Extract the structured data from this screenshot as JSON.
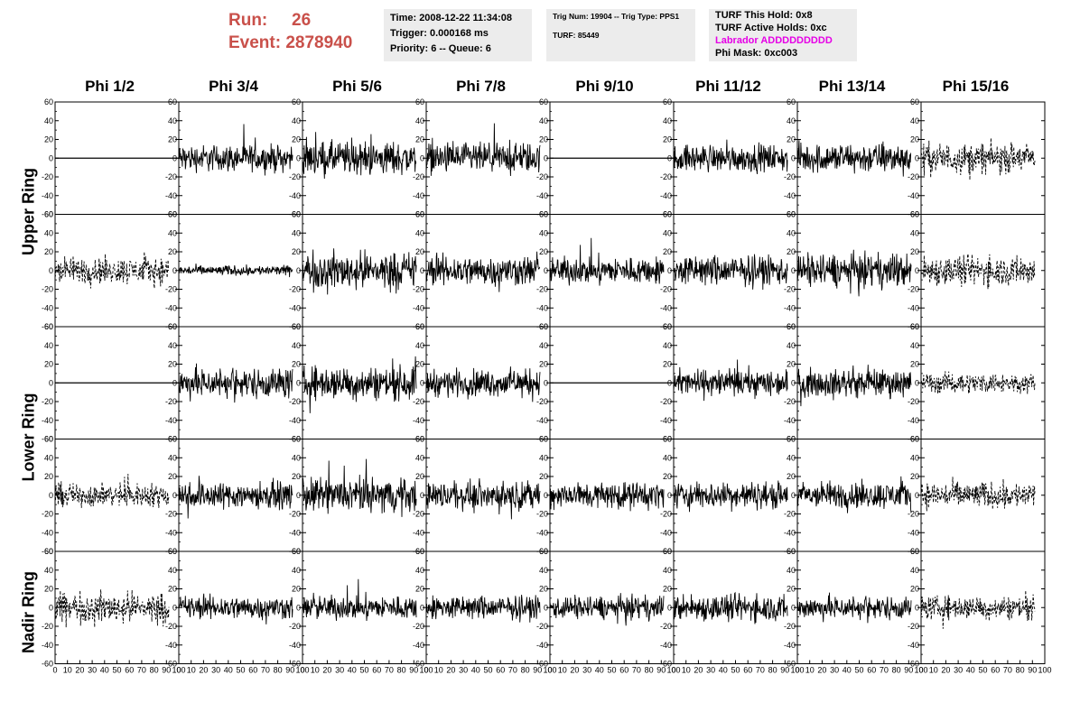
{
  "run": {
    "run_label": "Run:",
    "run_value": "26",
    "event_label": "Event:",
    "event_value": "2878940"
  },
  "info_time": {
    "time": "Time: 2008-12-22 11:34:08",
    "trigger": "Trigger: 0.000168 ms",
    "priority": "Priority: 6 -- Queue: 6"
  },
  "info_trig": {
    "trig": "Trig Num: 19904 -- Trig Type: PPS1",
    "turf": "TURF: 85449"
  },
  "info_turf": {
    "hold": "TURF This Hold: 0x8",
    "active": "TURF Active Holds: 0xc",
    "labrador": "Labrador ADDDDDDDDD",
    "phimask": "Phi Mask: 0xc003",
    "labrador_color": "#e600e6"
  },
  "columns": [
    "Phi 1/2",
    "Phi 3/4",
    "Phi 5/6",
    "Phi 7/8",
    "Phi 9/10",
    "Phi 11/12",
    "Phi 13/14",
    "Phi 15/16"
  ],
  "row_labels": [
    "Upper Ring",
    "Lower Ring",
    "Nadir Ring"
  ],
  "chart_data": {
    "type": "line",
    "xlim": [
      0,
      100
    ],
    "ylim": [
      -60,
      60
    ],
    "x_ticks": [
      0,
      10,
      20,
      30,
      40,
      50,
      60,
      70,
      80,
      90,
      100
    ],
    "y_ticks": [
      -60,
      -40,
      -20,
      0,
      20,
      40,
      60
    ],
    "grid": false,
    "panel_rows": 5,
    "panel_cols": 8,
    "panel_styles": [
      [
        "flat",
        "solid",
        "solid",
        "solid",
        "flat",
        "solid",
        "solid",
        "dashed"
      ],
      [
        "dashed",
        "solid",
        "solid",
        "solid",
        "solid",
        "solid",
        "solid",
        "dashed"
      ],
      [
        "flat",
        "solid",
        "solid",
        "solid",
        "flat",
        "solid",
        "solid",
        "dashed"
      ],
      [
        "dashed",
        "solid",
        "solid",
        "solid",
        "solid",
        "solid",
        "solid",
        "dashed"
      ],
      [
        "dashed",
        "solid",
        "solid",
        "solid",
        "solid",
        "solid",
        "solid",
        "dashed"
      ]
    ],
    "panel_amplitudes": [
      [
        0,
        16,
        20,
        18,
        0,
        16,
        18,
        18
      ],
      [
        16,
        6,
        22,
        18,
        16,
        18,
        20,
        18
      ],
      [
        0,
        18,
        20,
        16,
        0,
        16,
        16,
        12
      ],
      [
        14,
        16,
        20,
        16,
        16,
        16,
        16,
        16
      ],
      [
        18,
        14,
        14,
        14,
        14,
        16,
        14,
        14
      ]
    ]
  }
}
